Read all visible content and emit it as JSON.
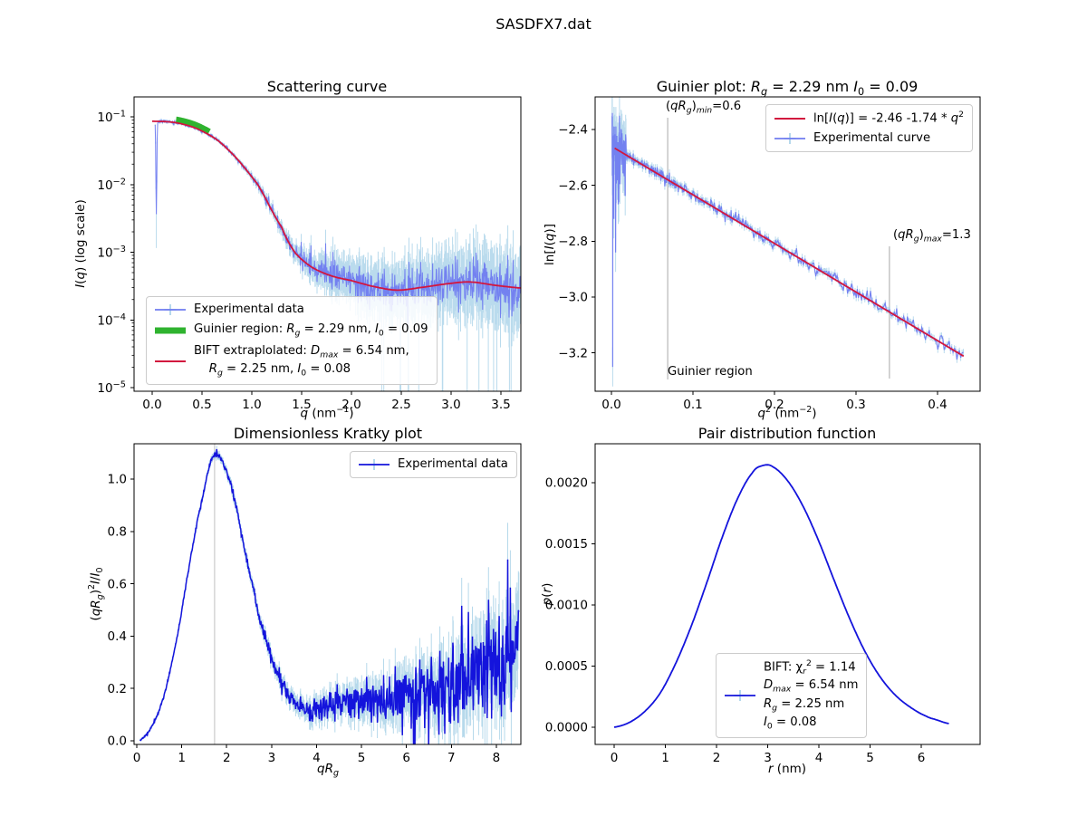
{
  "figure": {
    "suptitle": "SASDFX7.dat",
    "background": "#ffffff"
  },
  "colors": {
    "experimental": "#6f7cf0",
    "errorbar": "#a9d2e8",
    "guinier_green": "#2fb32f",
    "bift_crimson": "#d2163e",
    "data_blue": "#1414dc",
    "annotation_gray": "#a9a9a9",
    "kratky_vline_gray": "#c0c0c0",
    "frame": "#000000"
  },
  "chart_data": [
    {
      "id": "scattering",
      "type": "line",
      "title": "Scattering curve",
      "xlabel": "<i>q</i> (nm<sup>−1</sup>)",
      "ylabel": "<i>I</i>(<i>q</i>) (log scale)",
      "xlim": [
        -0.18,
        3.72
      ],
      "ylim_log10": [
        -5.05,
        -0.706
      ],
      "xticks": {
        "v": [
          0,
          0.5,
          1,
          1.5,
          2,
          2.5,
          3,
          3.5
        ],
        "labels": [
          "0.0",
          "0.5",
          "1.0",
          "1.5",
          "2.0",
          "2.5",
          "3.0",
          "3.5"
        ]
      },
      "yticks_log_exponents": [
        -1,
        -2,
        -3,
        -4,
        -5
      ],
      "series": {
        "experimental": {
          "n": 900,
          "qmin": 0.03,
          "qmax": 3.7,
          "seed": 11,
          "model_log10": {
            "x": [
              0.0,
              0.25,
              0.5,
              0.75,
              1.06,
              1.3,
              1.43,
              1.6,
              1.8,
              2.0,
              2.2,
              2.45,
              2.7,
              3.0,
              3.2,
              3.45,
              3.72
            ],
            "y": [
              -1.065,
              -1.09,
              -1.21,
              -1.47,
              -2.0,
              -2.63,
              -3.0,
              -3.22,
              -3.35,
              -3.42,
              -3.5,
              -3.56,
              -3.52,
              -3.46,
              -3.44,
              -3.49,
              -3.53
            ]
          },
          "noise_sigma": {
            "x": [
              0.03,
              0.8,
              1.1,
              1.4,
              1.7,
              2.0,
              2.5,
              3.0,
              3.72
            ],
            "y": [
              0.01,
              0.012,
              0.03,
              0.06,
              0.1,
              0.13,
              0.16,
              0.17,
              0.18
            ]
          },
          "errorbar_half": {
            "x": [
              0.03,
              0.8,
              1.2,
              1.5,
              1.8,
              2.2,
              2.6,
              3.0,
              3.72
            ],
            "y": [
              0.015,
              0.02,
              0.06,
              0.12,
              0.22,
              0.3,
              0.36,
              0.4,
              0.45
            ]
          },
          "lowq_dip": {
            "center_q": 0.042,
            "width_q": 0.0065,
            "depth_log10": 1.38,
            "whisker_extra": 0.5
          }
        },
        "guinier_region": {
          "q0": 0.24,
          "q1": 0.573,
          "offset_log10": 0.045
        },
        "bift": {
          "q0": 0.0,
          "q1": 3.7
        }
      },
      "legend": [
        {
          "swatch": "errline",
          "color": "#6f7cf0",
          "err": "#a9d2e8",
          "label": "Experimental data"
        },
        {
          "swatch": "thickline",
          "color": "#2fb32f",
          "label": "Guinier region: <i>R<sub>g</sub></i> = 2.29 nm, <i>I</i><sub>0</sub> = 0.09"
        },
        {
          "swatch": "line",
          "color": "#d2163e",
          "label": "BIFT extraplolated: <i>D</i><sub><i>max</i></sub> = 6.54 nm,<br>&nbsp;&nbsp;&nbsp;&nbsp;<i>R<sub>g</sub></i> = 2.25 nm, <i>I</i><sub>0</sub> = 0.08"
        }
      ]
    },
    {
      "id": "guinier",
      "type": "line",
      "title": "Guinier plot: <i>R<sub>g</sub></i> = 2.29 nm <i>I</i><sub>0</sub> = 0.09",
      "xlabel": "<i>q</i><sup>2</sup> (nm<sup>−2</sup>)",
      "ylabel": "ln[<i>I</i>(<i>q</i>)]",
      "xticks": {
        "v": [
          0,
          0.1,
          0.2,
          0.3,
          0.4
        ],
        "labels": [
          "0.0",
          "0.1",
          "0.2",
          "0.3",
          "0.4"
        ]
      },
      "yticks": {
        "v": [
          -2.4,
          -2.6,
          -2.8,
          -3.0,
          -3.2
        ],
        "labels": [
          "−2.4",
          "−2.6",
          "−2.8",
          "−3.0",
          "−3.2"
        ]
      },
      "fit": {
        "intercept": -2.46,
        "slope": -1.74,
        "x2min": 0.004,
        "x2max": 0.432
      },
      "experimental": {
        "n": 520,
        "qmin": 0.028,
        "qmax": 0.657,
        "seed": 23,
        "sigma_main": 0.0095,
        "sigma_lowq": 0.055,
        "lowq_x2max": 0.018,
        "err_half_main": 0.012,
        "err_half_lowq": 0.07,
        "spikes": [
          {
            "x2": 0.0016,
            "y": -3.25
          },
          {
            "x2": 0.0022,
            "y": -2.55
          },
          {
            "x2": 0.003,
            "y": -2.72
          },
          {
            "x2": 0.0052,
            "y": -2.84
          },
          {
            "x2": 0.009,
            "y": -2.66
          }
        ]
      },
      "vlines": [
        {
          "x": 0.069,
          "label": "(<i>qR<sub>g</sub></i>)<sub><i>min</i></sub>=0.6"
        },
        {
          "x": 0.341,
          "label": "(<i>qR<sub>g</sub></i>)<sub><i>max</i></sub>=1.3"
        }
      ],
      "note": "Guinier region",
      "legend": [
        {
          "swatch": "line",
          "color": "#d2163e",
          "label": "ln[<i>I</i>(<i>q</i>)] = -2.46 -1.74 * <i>q</i><sup>2</sup>"
        },
        {
          "swatch": "errline",
          "color": "#6f7cf0",
          "err": "#a9d2e8",
          "label": "Experimental curve"
        }
      ]
    },
    {
      "id": "kratky",
      "type": "line",
      "title": "Dimensionless Kratky plot",
      "xlabel": "<i>qR<sub>g</sub></i>",
      "ylabel": "(<i>qR<sub>g</sub></i>)<sup>2</sup><i>I</i>/<i>I</i><sub>0</sub>",
      "xticks": {
        "v": [
          0,
          1,
          2,
          3,
          4,
          5,
          6,
          7,
          8
        ],
        "labels": [
          "0",
          "1",
          "2",
          "3",
          "4",
          "5",
          "6",
          "7",
          "8"
        ]
      },
      "yticks": {
        "v": [
          0,
          0.2,
          0.4,
          0.6,
          0.8,
          1.0
        ],
        "labels": [
          "0.0",
          "0.2",
          "0.4",
          "0.6",
          "0.8",
          "1.0"
        ]
      },
      "vline_x": 1.732,
      "experimental": {
        "n": 850,
        "xmin": 0.07,
        "xmax": 8.5,
        "seed": 5,
        "model": {
          "x": [
            0.07,
            0.3,
            0.6,
            0.9,
            1.2,
            1.45,
            1.7,
            1.95,
            2.2,
            2.5,
            2.8,
            3.1,
            3.4,
            3.7,
            4.0,
            4.3,
            4.7,
            5.0,
            5.4,
            5.8,
            6.2,
            6.6,
            7.0,
            7.4,
            7.8,
            8.2,
            8.5
          ],
          "y": [
            0.004,
            0.045,
            0.17,
            0.4,
            0.7,
            0.92,
            1.09,
            1.05,
            0.9,
            0.65,
            0.43,
            0.27,
            0.17,
            0.125,
            0.12,
            0.13,
            0.15,
            0.15,
            0.16,
            0.17,
            0.19,
            0.21,
            0.235,
            0.26,
            0.29,
            0.32,
            0.35
          ]
        },
        "noise_sigma": {
          "x": [
            0.07,
            1,
            2,
            3,
            3.7,
            4.5,
            5.5,
            6.5,
            7.5,
            8.5
          ],
          "y": [
            0.002,
            0.004,
            0.006,
            0.012,
            0.018,
            0.028,
            0.045,
            0.07,
            0.09,
            0.11
          ]
        },
        "errorbar_half": {
          "x": [
            0.07,
            1,
            3,
            4,
            5,
            6,
            7,
            8,
            8.5
          ],
          "y": [
            0.004,
            0.008,
            0.02,
            0.035,
            0.05,
            0.075,
            0.1,
            0.13,
            0.15
          ]
        }
      },
      "legend": [
        {
          "swatch": "errline",
          "color": "#1414dc",
          "err": "#a9d2e8",
          "label": "Experimental data"
        }
      ]
    },
    {
      "id": "pr",
      "type": "line",
      "title": "Pair distribution function",
      "xlabel": "<i>r</i> (nm)",
      "ylabel": "<i>p</i>(<i>r</i>)",
      "xticks": {
        "v": [
          0,
          1,
          2,
          3,
          4,
          5,
          6
        ],
        "labels": [
          "0",
          "1",
          "2",
          "3",
          "4",
          "5",
          "6"
        ]
      },
      "yticks": {
        "v": [
          0,
          0.0005,
          0.001,
          0.0015,
          0.002
        ],
        "labels": [
          "0.0000",
          "0.0005",
          "0.0010",
          "0.0015",
          "0.0020"
        ]
      },
      "curve": {
        "x": [
          0,
          0.3,
          0.6,
          0.9,
          1.2,
          1.5,
          1.8,
          2.1,
          2.4,
          2.7,
          2.9,
          3.1,
          3.4,
          3.7,
          4.0,
          4.3,
          4.6,
          4.9,
          5.2,
          5.5,
          5.8,
          6.1,
          6.3,
          6.54
        ],
        "y": [
          0,
          4e-05,
          0.00013,
          0.00028,
          0.00052,
          0.00082,
          0.00117,
          0.00154,
          0.00186,
          0.00208,
          0.00214,
          0.00213,
          0.00201,
          0.0018,
          0.00152,
          0.0012,
          0.00089,
          0.00062,
          0.00041,
          0.00026,
          0.00016,
          9e-05,
          6e-05,
          3e-05
        ]
      },
      "legend": [
        {
          "swatch": "errline",
          "color": "#1414dc",
          "err": "#a9d2e8",
          "label": "BIFT: χ<sub><i>r</i></sub><sup>2</sup> = 1.14<br><i>D</i><sub><i>max</i></sub> = 6.54 nm<br><i>R<sub>g</sub></i> = 2.25  nm<br><i>I</i><sub>0</sub> = 0.08"
        }
      ]
    }
  ]
}
